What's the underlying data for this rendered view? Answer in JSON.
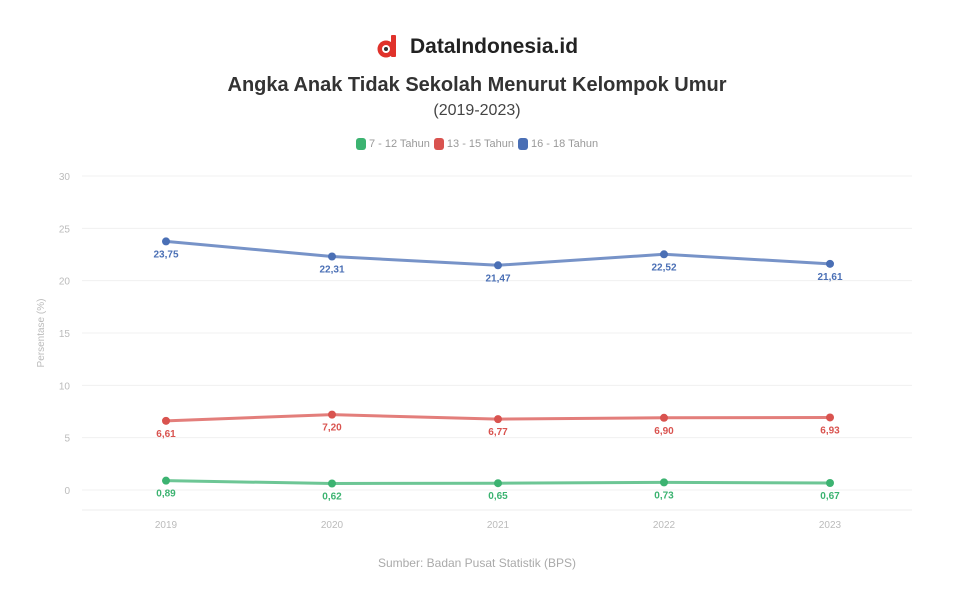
{
  "brand": {
    "name": "DataIndonesia.id",
    "logo_icon": "dataindonesia-logo-icon"
  },
  "source": "Sumber: Badan Pusat Statistik (BPS)",
  "chart_data": {
    "type": "line",
    "title": "Angka Anak Tidak Sekolah Menurut Kelompok Umur",
    "subtitle": "(2019-2023)",
    "xlabel": "",
    "ylabel": "Persentase (%)",
    "x": [
      "2019",
      "2020",
      "2021",
      "2022",
      "2023"
    ],
    "ylim": [
      0,
      30
    ],
    "yticks": [
      0,
      5,
      10,
      15,
      20,
      25,
      30
    ],
    "grid": true,
    "legend_position": "top",
    "series": [
      {
        "name": "7 - 12 Tahun",
        "color": "#3cb371",
        "values": [
          0.89,
          0.62,
          0.65,
          0.73,
          0.67
        ],
        "labels": [
          "0,89",
          "0,62",
          "0,65",
          "0,73",
          "0,67"
        ]
      },
      {
        "name": "13 - 15 Tahun",
        "color": "#d9534f",
        "values": [
          6.61,
          7.2,
          6.77,
          6.9,
          6.93
        ],
        "labels": [
          "6,61",
          "7,20",
          "6,77",
          "6,90",
          "6,93"
        ]
      },
      {
        "name": "16 - 18 Tahun",
        "color": "#4a6fb5",
        "values": [
          23.75,
          22.31,
          21.47,
          22.52,
          21.61
        ],
        "labels": [
          "23,75",
          "22,31",
          "21,47",
          "22,52",
          "21,61"
        ]
      }
    ]
  }
}
